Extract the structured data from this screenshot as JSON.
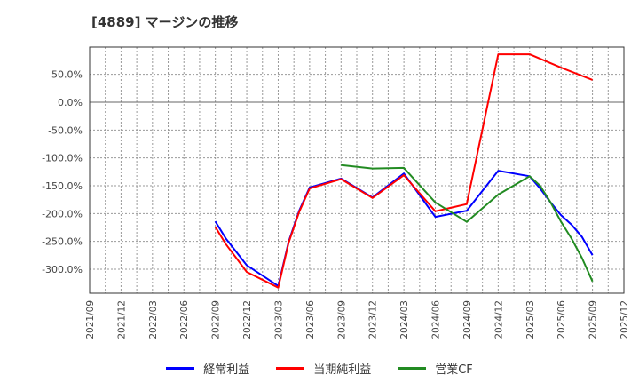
{
  "title": "[4889]  マージンの推移",
  "chart_data": {
    "type": "line",
    "title": "[4889] マージンの推移",
    "xlabel": "",
    "ylabel": "",
    "ylim": [
      -345,
      95
    ],
    "y_ticks": [
      "50.0%",
      "0.0%",
      "-50.0%",
      "-100.0%",
      "-150.0%",
      "-200.0%",
      "-250.0%",
      "-300.0%"
    ],
    "y_tick_values": [
      50,
      0,
      -50,
      -100,
      -150,
      -200,
      -250,
      -300
    ],
    "x_ticks": [
      "2021/09",
      "2021/12",
      "2022/03",
      "2022/06",
      "2022/09",
      "2022/12",
      "2023/03",
      "2023/06",
      "2023/09",
      "2023/12",
      "2024/03",
      "2024/06",
      "2024/09",
      "2024/12",
      "2025/03",
      "2025/06",
      "2025/09",
      "2025/12"
    ],
    "grid": true,
    "legend_position": "bottom",
    "series": [
      {
        "name": "経常利益",
        "color": "#0000ff",
        "points": [
          [
            "2022/09",
            -214
          ],
          [
            "2022/10",
            -245
          ],
          [
            "2022/12",
            -293
          ],
          [
            "2023/03",
            -330
          ],
          [
            "2023/04",
            -250
          ],
          [
            "2023/05",
            -195
          ],
          [
            "2023/06",
            -153
          ],
          [
            "2023/09",
            -137
          ],
          [
            "2023/12",
            -171
          ],
          [
            "2024/03",
            -128
          ],
          [
            "2024/06",
            -206
          ],
          [
            "2024/09",
            -195
          ],
          [
            "2024/12",
            -123
          ],
          [
            "2025/03",
            -133
          ],
          [
            "2025/04",
            -155
          ],
          [
            "2025/05",
            -180
          ],
          [
            "2025/06",
            -203
          ],
          [
            "2025/07",
            -220
          ],
          [
            "2025/08",
            -242
          ],
          [
            "2025/09",
            -275
          ]
        ]
      },
      {
        "name": "当期純利益",
        "color": "#ff0000",
        "points": [
          [
            "2022/09",
            -224
          ],
          [
            "2022/10",
            -255
          ],
          [
            "2022/12",
            -305
          ],
          [
            "2023/03",
            -333
          ],
          [
            "2023/04",
            -252
          ],
          [
            "2023/05",
            -197
          ],
          [
            "2023/06",
            -155
          ],
          [
            "2023/09",
            -138
          ],
          [
            "2023/12",
            -172
          ],
          [
            "2024/03",
            -131
          ],
          [
            "2024/06",
            -196
          ],
          [
            "2024/09",
            -183
          ],
          [
            "2024/12",
            86
          ],
          [
            "2025/03",
            86
          ],
          [
            "2025/06",
            62
          ],
          [
            "2025/09",
            40
          ]
        ]
      },
      {
        "name": "営業CF",
        "color": "#228b22",
        "points": [
          [
            "2023/09",
            -113
          ],
          [
            "2023/12",
            -119
          ],
          [
            "2024/03",
            -118
          ],
          [
            "2024/06",
            -180
          ],
          [
            "2024/09",
            -215
          ],
          [
            "2024/12",
            -166
          ],
          [
            "2025/03",
            -133
          ],
          [
            "2025/04",
            -150
          ],
          [
            "2025/05",
            -180
          ],
          [
            "2025/06",
            -215
          ],
          [
            "2025/07",
            -245
          ],
          [
            "2025/08",
            -280
          ],
          [
            "2025/09",
            -322
          ]
        ]
      }
    ]
  },
  "legend": {
    "items": [
      {
        "label": "経常利益",
        "color": "#0000ff"
      },
      {
        "label": "当期純利益",
        "color": "#ff0000"
      },
      {
        "label": "営業CF",
        "color": "#228b22"
      }
    ]
  }
}
